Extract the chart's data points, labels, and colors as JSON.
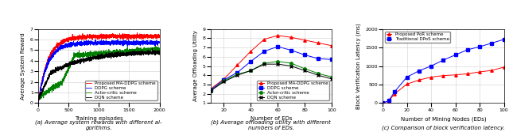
{
  "fig_width": 6.4,
  "fig_height": 1.67,
  "dpi": 100,
  "subplot_a": {
    "xlabel": "Training episodes",
    "ylabel": "Average System Reward",
    "xlim": [
      0,
      2000
    ],
    "ylim": [
      0,
      7
    ],
    "yticks": [
      0,
      1,
      2,
      3,
      4,
      5,
      6,
      7
    ],
    "xticks": [
      0,
      500,
      1000,
      1500,
      2000
    ],
    "legend": [
      "Proposed MA-DDPG scheme",
      "DDPG scheme",
      "Actor-critic scheme",
      "DQN scheme"
    ],
    "colors": [
      "red",
      "blue",
      "green",
      "black"
    ],
    "caption": "(a) Average system rewards with different al-\ngorithms."
  },
  "subplot_b": {
    "xlabel": "Number of EDs",
    "ylabel": "Average Offloading Utility",
    "xlim": [
      10,
      100
    ],
    "ylim": [
      1,
      9
    ],
    "yticks": [
      1,
      2,
      3,
      4,
      5,
      6,
      7,
      8,
      9
    ],
    "xticks": [
      20,
      40,
      60,
      80,
      100
    ],
    "x_data": [
      10,
      20,
      30,
      40,
      50,
      60,
      70,
      80,
      90,
      100
    ],
    "ma_ddpg": [
      2.5,
      3.6,
      5.1,
      6.6,
      7.9,
      8.3,
      8.1,
      7.8,
      7.5,
      7.2
    ],
    "ddpg": [
      2.4,
      3.5,
      4.3,
      5.5,
      6.6,
      7.1,
      6.7,
      6.2,
      5.8,
      5.7
    ],
    "actor": [
      2.3,
      3.4,
      4.1,
      4.5,
      5.3,
      5.5,
      5.3,
      4.7,
      4.2,
      3.8
    ],
    "dqn": [
      2.3,
      3.3,
      4.0,
      4.5,
      5.2,
      5.2,
      5.0,
      4.5,
      4.0,
      3.6
    ],
    "legend": [
      "Proposed MA-DDPG scheme",
      "DDPG scheme",
      "Actor-critic scheme",
      "DQN scheme"
    ],
    "colors": [
      "red",
      "blue",
      "green",
      "black"
    ],
    "markers": [
      "^",
      "s",
      "o",
      "x"
    ],
    "caption": "(b) Average offloading utility with different\nnumbers of EDs."
  },
  "subplot_c": {
    "xlabel": "Number of Mining Nodes (EDs)",
    "ylabel": "Block Verification Latency (ms)",
    "xlim": [
      0,
      100
    ],
    "ylim": [
      0,
      2000
    ],
    "yticks": [
      0,
      500,
      1000,
      1500,
      2000
    ],
    "xticks": [
      0,
      20,
      40,
      60,
      80,
      100
    ],
    "x_data": [
      0,
      5,
      10,
      20,
      30,
      40,
      50,
      60,
      70,
      80,
      90,
      100
    ],
    "por": [
      0,
      50,
      250,
      510,
      620,
      700,
      740,
      760,
      790,
      840,
      880,
      970
    ],
    "dpos": [
      0,
      60,
      310,
      700,
      870,
      1000,
      1160,
      1300,
      1440,
      1520,
      1620,
      1720
    ],
    "legend": [
      "Proposed PoR scheme",
      "Traditional DPoS scheme"
    ],
    "colors": [
      "red",
      "blue"
    ],
    "markers": [
      "^",
      "s"
    ],
    "caption": "(c) Comparison of block verification latency."
  },
  "caption_fontsize": 5.0,
  "tick_fontsize": 4.5,
  "label_fontsize": 5.0,
  "legend_fontsize": 4.0,
  "grid_color": "#d0d0d0",
  "background_color": "#ffffff"
}
